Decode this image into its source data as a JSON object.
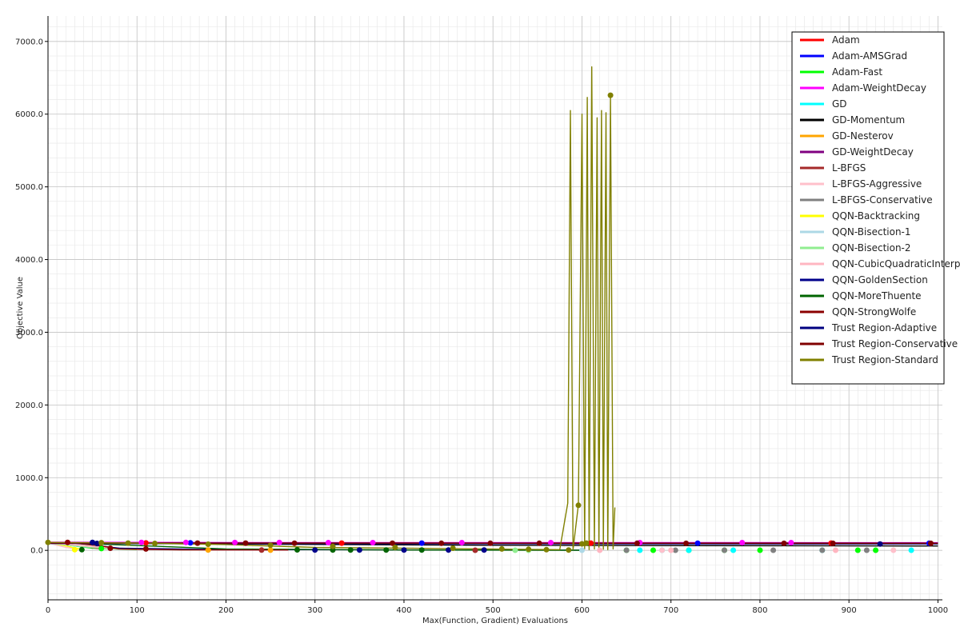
{
  "chart_data": {
    "type": "line",
    "title": "",
    "xlabel": "Max(Function, Gradient) Evaluations",
    "ylabel": "Objective Value",
    "xlim": [
      0,
      1005
    ],
    "ylim": [
      -680,
      7350
    ],
    "x_ticks": [
      0,
      100,
      200,
      300,
      400,
      500,
      600,
      700,
      800,
      900,
      1000
    ],
    "x_tick_labels": [
      "0",
      "100",
      "200",
      "300",
      "400",
      "500",
      "600",
      "700",
      "800",
      "900",
      "1000"
    ],
    "y_ticks": [
      0,
      1000,
      2000,
      3000,
      4000,
      5000,
      6000,
      7000
    ],
    "y_tick_labels": [
      "0.0",
      "1000.0",
      "2000.0",
      "3000.0",
      "4000.0",
      "5000.0",
      "6000.0",
      "7000.0"
    ],
    "grid": true,
    "minor_grid": true,
    "legend_position": "top-right",
    "series": [
      {
        "name": "Adam",
        "color": "#ff0000",
        "points": [
          [
            0,
            105
          ],
          [
            100,
            102
          ],
          [
            200,
            101
          ],
          [
            300,
            100
          ],
          [
            400,
            100
          ],
          [
            500,
            100
          ],
          [
            600,
            100
          ],
          [
            700,
            100
          ],
          [
            800,
            100
          ],
          [
            900,
            100
          ],
          [
            1000,
            100
          ]
        ],
        "markers": [
          [
            110,
            102
          ],
          [
            330,
            100
          ],
          [
            610,
            100
          ],
          [
            880,
            100
          ]
        ]
      },
      {
        "name": "Adam-AMSGrad",
        "color": "#0000ff",
        "points": [
          [
            0,
            110
          ],
          [
            100,
            104
          ],
          [
            200,
            102
          ],
          [
            300,
            100
          ],
          [
            400,
            100
          ],
          [
            500,
            99
          ],
          [
            600,
            99
          ],
          [
            700,
            99
          ],
          [
            800,
            99
          ],
          [
            900,
            99
          ],
          [
            1000,
            98
          ]
        ],
        "markers": [
          [
            160,
            103
          ],
          [
            420,
            100
          ],
          [
            730,
            99
          ],
          [
            990,
            98
          ]
        ]
      },
      {
        "name": "Adam-Fast",
        "color": "#00ff00",
        "points": [
          [
            0,
            108
          ],
          [
            50,
            30
          ],
          [
            100,
            12
          ]
        ],
        "markers": [
          [
            60,
            25
          ],
          [
            650,
            2
          ],
          [
            680,
            2
          ],
          [
            720,
            2
          ],
          [
            760,
            2
          ],
          [
            800,
            2
          ],
          [
            910,
            2
          ],
          [
            930,
            2
          ]
        ]
      },
      {
        "name": "Adam-WeightDecay",
        "color": "#ff00ff",
        "points": [
          [
            0,
            112
          ],
          [
            200,
            108
          ],
          [
            400,
            107
          ],
          [
            600,
            106
          ],
          [
            800,
            106
          ],
          [
            1000,
            105
          ]
        ],
        "markers": [
          [
            105,
            110
          ],
          [
            155,
            109
          ],
          [
            210,
            108
          ],
          [
            260,
            108
          ],
          [
            315,
            107
          ],
          [
            365,
            107
          ],
          [
            465,
            106
          ],
          [
            565,
            106
          ],
          [
            665,
            106
          ],
          [
            780,
            106
          ],
          [
            835,
            106
          ]
        ]
      },
      {
        "name": "GD",
        "color": "#00ffff",
        "points": [
          [
            0,
            110
          ],
          [
            30,
            60
          ],
          [
            60,
            25
          ]
        ],
        "markers": [
          [
            665,
            2
          ],
          [
            690,
            2
          ],
          [
            720,
            2
          ],
          [
            770,
            2
          ],
          [
            870,
            2
          ],
          [
            970,
            2
          ]
        ]
      },
      {
        "name": "GD-Momentum",
        "color": "#000000",
        "points": [
          [
            0,
            100
          ],
          [
            500,
            70
          ],
          [
            1000,
            60
          ]
        ],
        "markers": []
      },
      {
        "name": "GD-Nesterov",
        "color": "#ffa500",
        "points": [
          [
            0,
            105
          ],
          [
            40,
            60
          ],
          [
            80,
            20
          ]
        ],
        "markers": [
          [
            180,
            5
          ],
          [
            250,
            3
          ]
        ]
      },
      {
        "name": "GD-WeightDecay",
        "color": "#800080",
        "points": [
          [
            0,
            106
          ],
          [
            300,
            104
          ],
          [
            600,
            103
          ],
          [
            1000,
            103
          ]
        ],
        "markers": []
      },
      {
        "name": "L-BFGS",
        "color": "#a52a2a",
        "points": [
          [
            0,
            104
          ],
          [
            30,
            70
          ],
          [
            60,
            20
          ]
        ],
        "markers": [
          [
            240,
            4
          ],
          [
            480,
            2
          ]
        ]
      },
      {
        "name": "L-BFGS-Aggressive",
        "color": "#ffc0cb",
        "points": [
          [
            0,
            100
          ],
          [
            20,
            40
          ],
          [
            40,
            10
          ]
        ],
        "markers": [
          [
            690,
            2
          ],
          [
            950,
            2
          ]
        ]
      },
      {
        "name": "L-BFGS-Conservative",
        "color": "#808080",
        "points": [
          [
            0,
            100
          ],
          [
            50,
            50
          ],
          [
            100,
            20
          ]
        ],
        "markers": [
          [
            650,
            2
          ],
          [
            705,
            2
          ],
          [
            760,
            2
          ],
          [
            815,
            2
          ],
          [
            870,
            2
          ],
          [
            920,
            2
          ]
        ]
      },
      {
        "name": "QQN-Backtracking",
        "color": "#ffff00",
        "points": [
          [
            0,
            110
          ],
          [
            20,
            60
          ],
          [
            40,
            10
          ]
        ],
        "markers": [
          [
            30,
            10
          ]
        ]
      },
      {
        "name": "QQN-Bisection-1",
        "color": "#add8e6",
        "points": [
          [
            0,
            100
          ],
          [
            40,
            50
          ],
          [
            80,
            15
          ]
        ],
        "markers": [
          [
            600,
            2
          ]
        ]
      },
      {
        "name": "QQN-Bisection-2",
        "color": "#90ee90",
        "points": [
          [
            0,
            100
          ],
          [
            40,
            50
          ],
          [
            80,
            15
          ]
        ],
        "markers": [
          [
            525,
            2
          ],
          [
            540,
            2
          ]
        ]
      },
      {
        "name": "QQN-CubicQuadraticInterpolation",
        "color": "#ffb6c1",
        "points": [
          [
            0,
            104
          ],
          [
            60,
            40
          ],
          [
            120,
            10
          ]
        ],
        "markers": [
          [
            620,
            2
          ],
          [
            700,
            2
          ],
          [
            885,
            2
          ]
        ]
      },
      {
        "name": "QQN-GoldenSection",
        "color": "#00008b",
        "points": [
          [
            40,
            90
          ],
          [
            80,
            30
          ],
          [
            200,
            12
          ],
          [
            400,
            6
          ],
          [
            600,
            3
          ]
        ],
        "markers": [
          [
            50,
            110
          ],
          [
            300,
            5
          ],
          [
            350,
            5
          ],
          [
            400,
            5
          ],
          [
            450,
            5
          ],
          [
            490,
            5
          ]
        ]
      },
      {
        "name": "QQN-MoreThuente",
        "color": "#006400",
        "points": [
          [
            30,
            100
          ],
          [
            200,
            20
          ],
          [
            400,
            5
          ],
          [
            600,
            2
          ]
        ],
        "markers": [
          [
            38,
            10
          ],
          [
            280,
            8
          ],
          [
            320,
            5
          ],
          [
            340,
            5
          ],
          [
            380,
            5
          ],
          [
            420,
            5
          ]
        ]
      },
      {
        "name": "QQN-StrongWolfe",
        "color": "#8b0000",
        "points": [
          [
            20,
            110
          ],
          [
            60,
            60
          ],
          [
            80,
            20
          ],
          [
            150,
            8
          ],
          [
            270,
            5
          ]
        ],
        "markers": [
          [
            22,
            110
          ],
          [
            70,
            30
          ],
          [
            110,
            20
          ]
        ]
      },
      {
        "name": "Trust Region-Adaptive",
        "color": "#000080",
        "points": [
          [
            0,
            95
          ],
          [
            300,
            92
          ],
          [
            600,
            90
          ],
          [
            1000,
            88
          ]
        ],
        "markers": [
          [
            55,
            95
          ],
          [
            935,
            88
          ]
        ]
      },
      {
        "name": "Trust Region-Conservative",
        "color": "#800000",
        "points": [
          [
            0,
            100
          ],
          [
            300,
            99
          ],
          [
            600,
            98
          ],
          [
            1000,
            97
          ]
        ],
        "markers": [
          [
            168,
            100
          ],
          [
            222,
            100
          ],
          [
            277,
            99
          ],
          [
            387,
            99
          ],
          [
            442,
            98
          ],
          [
            497,
            98
          ],
          [
            552,
            98
          ],
          [
            662,
            98
          ],
          [
            717,
            97
          ],
          [
            827,
            97
          ],
          [
            882,
            97
          ],
          [
            992,
            97
          ]
        ]
      },
      {
        "name": "Trust Region-Standard",
        "color": "#808000",
        "points": [
          [
            0,
            110
          ],
          [
            100,
            100
          ],
          [
            200,
            80
          ],
          [
            300,
            40
          ],
          [
            450,
            25
          ],
          [
            575,
            10
          ],
          [
            584,
            650
          ],
          [
            587,
            6050
          ],
          [
            590,
            10
          ],
          [
            596,
            630
          ],
          [
            600,
            6000
          ],
          [
            603,
            20
          ],
          [
            606,
            6230
          ],
          [
            608,
            10
          ],
          [
            611,
            6650
          ],
          [
            614,
            20
          ],
          [
            617,
            5950
          ],
          [
            619,
            10
          ],
          [
            622,
            6050
          ],
          [
            624,
            15
          ],
          [
            627,
            6020
          ],
          [
            629,
            10
          ],
          [
            632,
            6250
          ],
          [
            635,
            20
          ],
          [
            637,
            590
          ]
        ],
        "markers": [
          [
            0,
            110
          ],
          [
            60,
            105
          ],
          [
            90,
            100
          ],
          [
            120,
            95
          ],
          [
            180,
            85
          ],
          [
            250,
            70
          ],
          [
            320,
            55
          ],
          [
            390,
            40
          ],
          [
            455,
            30
          ],
          [
            510,
            20
          ],
          [
            540,
            15
          ],
          [
            560,
            10
          ],
          [
            585,
            5
          ],
          [
            596,
            620
          ],
          [
            600,
            90
          ],
          [
            605,
            100
          ],
          [
            632,
            6260
          ]
        ]
      }
    ]
  }
}
